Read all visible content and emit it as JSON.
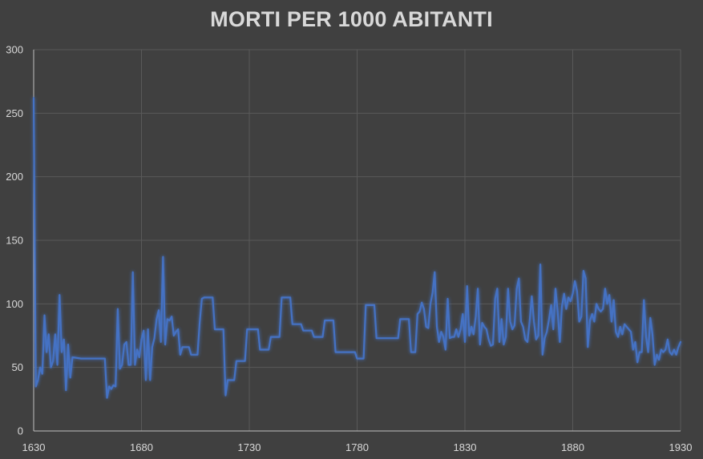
{
  "chart_data": {
    "type": "line",
    "title": "MORTI PER 1000 ABITANTI",
    "xlabel": "",
    "ylabel": "",
    "xlim": [
      1630,
      1930
    ],
    "ylim": [
      0,
      300
    ],
    "x_ticks": [
      "1630",
      "1680",
      "1730",
      "1780",
      "1830",
      "1880",
      "1930"
    ],
    "y_ticks": [
      "0",
      "50",
      "100",
      "150",
      "200",
      "250",
      "300"
    ],
    "grid": true,
    "legend": "none",
    "series": [
      {
        "color": "#4472c4",
        "points": [
          [
            1630,
            262
          ],
          [
            1631,
            35
          ],
          [
            1632,
            40
          ],
          [
            1633,
            50
          ],
          [
            1634,
            45
          ],
          [
            1635,
            91
          ],
          [
            1636,
            62
          ],
          [
            1637,
            76
          ],
          [
            1638,
            50
          ],
          [
            1639,
            55
          ],
          [
            1640,
            76
          ],
          [
            1641,
            52
          ],
          [
            1642,
            107
          ],
          [
            1643,
            62
          ],
          [
            1644,
            72
          ],
          [
            1645,
            32
          ],
          [
            1646,
            68
          ],
          [
            1647,
            42
          ],
          [
            1648,
            58
          ],
          [
            1652,
            57
          ],
          [
            1656,
            57
          ],
          [
            1660,
            57
          ],
          [
            1663,
            57
          ],
          [
            1664,
            26
          ],
          [
            1665,
            35
          ],
          [
            1666,
            33
          ],
          [
            1667,
            36
          ],
          [
            1668,
            35
          ],
          [
            1669,
            96
          ],
          [
            1670,
            49
          ],
          [
            1671,
            52
          ],
          [
            1672,
            68
          ],
          [
            1673,
            70
          ],
          [
            1674,
            52
          ],
          [
            1675,
            52
          ],
          [
            1676,
            125
          ],
          [
            1677,
            52
          ],
          [
            1678,
            64
          ],
          [
            1679,
            58
          ],
          [
            1680,
            72
          ],
          [
            1681,
            79
          ],
          [
            1682,
            40
          ],
          [
            1683,
            80
          ],
          [
            1684,
            40
          ],
          [
            1685,
            66
          ],
          [
            1686,
            73
          ],
          [
            1687,
            88
          ],
          [
            1688,
            95
          ],
          [
            1689,
            70
          ],
          [
            1690,
            137
          ],
          [
            1691,
            68
          ],
          [
            1692,
            88
          ],
          [
            1693,
            87
          ],
          [
            1694,
            90
          ],
          [
            1695,
            75
          ],
          [
            1696,
            78
          ],
          [
            1697,
            80
          ],
          [
            1698,
            60
          ],
          [
            1699,
            66
          ],
          [
            1702,
            66
          ],
          [
            1703,
            60
          ],
          [
            1706,
            60
          ],
          [
            1707,
            85
          ],
          [
            1708,
            104
          ],
          [
            1709,
            105
          ],
          [
            1713,
            105
          ],
          [
            1714,
            80
          ],
          [
            1718,
            80
          ],
          [
            1719,
            28
          ],
          [
            1720,
            40
          ],
          [
            1723,
            40
          ],
          [
            1724,
            55
          ],
          [
            1728,
            55
          ],
          [
            1729,
            80
          ],
          [
            1734,
            80
          ],
          [
            1735,
            64
          ],
          [
            1739,
            64
          ],
          [
            1740,
            74
          ],
          [
            1744,
            74
          ],
          [
            1745,
            105
          ],
          [
            1749,
            105
          ],
          [
            1750,
            84
          ],
          [
            1754,
            84
          ],
          [
            1755,
            79
          ],
          [
            1759,
            79
          ],
          [
            1760,
            74
          ],
          [
            1764,
            74
          ],
          [
            1765,
            87
          ],
          [
            1769,
            87
          ],
          [
            1770,
            62
          ],
          [
            1779,
            62
          ],
          [
            1780,
            57
          ],
          [
            1783,
            57
          ],
          [
            1784,
            99
          ],
          [
            1788,
            99
          ],
          [
            1789,
            73
          ],
          [
            1799,
            73
          ],
          [
            1800,
            88
          ],
          [
            1804,
            88
          ],
          [
            1805,
            62
          ],
          [
            1807,
            62
          ],
          [
            1808,
            92
          ],
          [
            1809,
            94
          ],
          [
            1810,
            101
          ],
          [
            1811,
            96
          ],
          [
            1812,
            82
          ],
          [
            1813,
            81
          ],
          [
            1814,
            100
          ],
          [
            1815,
            109
          ],
          [
            1816,
            125
          ],
          [
            1817,
            82
          ],
          [
            1818,
            70
          ],
          [
            1819,
            78
          ],
          [
            1820,
            74
          ],
          [
            1821,
            64
          ],
          [
            1822,
            104
          ],
          [
            1823,
            73
          ],
          [
            1824,
            74
          ],
          [
            1825,
            74
          ],
          [
            1826,
            80
          ],
          [
            1827,
            74
          ],
          [
            1828,
            80
          ],
          [
            1829,
            92
          ],
          [
            1830,
            70
          ],
          [
            1831,
            114
          ],
          [
            1832,
            75
          ],
          [
            1833,
            82
          ],
          [
            1834,
            76
          ],
          [
            1835,
            90
          ],
          [
            1836,
            112
          ],
          [
            1837,
            68
          ],
          [
            1838,
            85
          ],
          [
            1839,
            82
          ],
          [
            1840,
            80
          ],
          [
            1841,
            72
          ],
          [
            1842,
            67
          ],
          [
            1843,
            68
          ],
          [
            1844,
            104
          ],
          [
            1845,
            112
          ],
          [
            1846,
            70
          ],
          [
            1847,
            88
          ],
          [
            1848,
            68
          ],
          [
            1849,
            74
          ],
          [
            1850,
            112
          ],
          [
            1851,
            86
          ],
          [
            1852,
            80
          ],
          [
            1853,
            83
          ],
          [
            1854,
            112
          ],
          [
            1855,
            120
          ],
          [
            1856,
            86
          ],
          [
            1857,
            82
          ],
          [
            1858,
            72
          ],
          [
            1859,
            70
          ],
          [
            1860,
            86
          ],
          [
            1861,
            106
          ],
          [
            1862,
            86
          ],
          [
            1863,
            72
          ],
          [
            1864,
            75
          ],
          [
            1865,
            131
          ],
          [
            1866,
            60
          ],
          [
            1867,
            73
          ],
          [
            1868,
            78
          ],
          [
            1869,
            88
          ],
          [
            1870,
            99
          ],
          [
            1871,
            80
          ],
          [
            1872,
            112
          ],
          [
            1873,
            94
          ],
          [
            1874,
            70
          ],
          [
            1875,
            98
          ],
          [
            1876,
            108
          ],
          [
            1877,
            96
          ],
          [
            1878,
            105
          ],
          [
            1879,
            102
          ],
          [
            1880,
            108
          ],
          [
            1881,
            118
          ],
          [
            1882,
            110
          ],
          [
            1883,
            86
          ],
          [
            1884,
            90
          ],
          [
            1885,
            126
          ],
          [
            1886,
            120
          ],
          [
            1887,
            66
          ],
          [
            1888,
            87
          ],
          [
            1889,
            92
          ],
          [
            1890,
            86
          ],
          [
            1891,
            100
          ],
          [
            1892,
            96
          ],
          [
            1893,
            94
          ],
          [
            1894,
            96
          ],
          [
            1895,
            112
          ],
          [
            1896,
            100
          ],
          [
            1897,
            107
          ],
          [
            1898,
            86
          ],
          [
            1899,
            103
          ],
          [
            1900,
            78
          ],
          [
            1901,
            74
          ],
          [
            1902,
            82
          ],
          [
            1903,
            76
          ],
          [
            1904,
            84
          ],
          [
            1905,
            82
          ],
          [
            1906,
            80
          ],
          [
            1907,
            78
          ],
          [
            1908,
            64
          ],
          [
            1909,
            70
          ],
          [
            1910,
            54
          ],
          [
            1911,
            62
          ],
          [
            1912,
            62
          ],
          [
            1913,
            103
          ],
          [
            1914,
            74
          ],
          [
            1915,
            62
          ],
          [
            1916,
            89
          ],
          [
            1917,
            76
          ],
          [
            1918,
            52
          ],
          [
            1919,
            60
          ],
          [
            1920,
            56
          ],
          [
            1921,
            64
          ],
          [
            1922,
            62
          ],
          [
            1923,
            64
          ],
          [
            1924,
            72
          ],
          [
            1925,
            62
          ],
          [
            1926,
            60
          ],
          [
            1927,
            64
          ],
          [
            1928,
            60
          ],
          [
            1929,
            66
          ],
          [
            1930,
            70
          ]
        ]
      }
    ]
  }
}
